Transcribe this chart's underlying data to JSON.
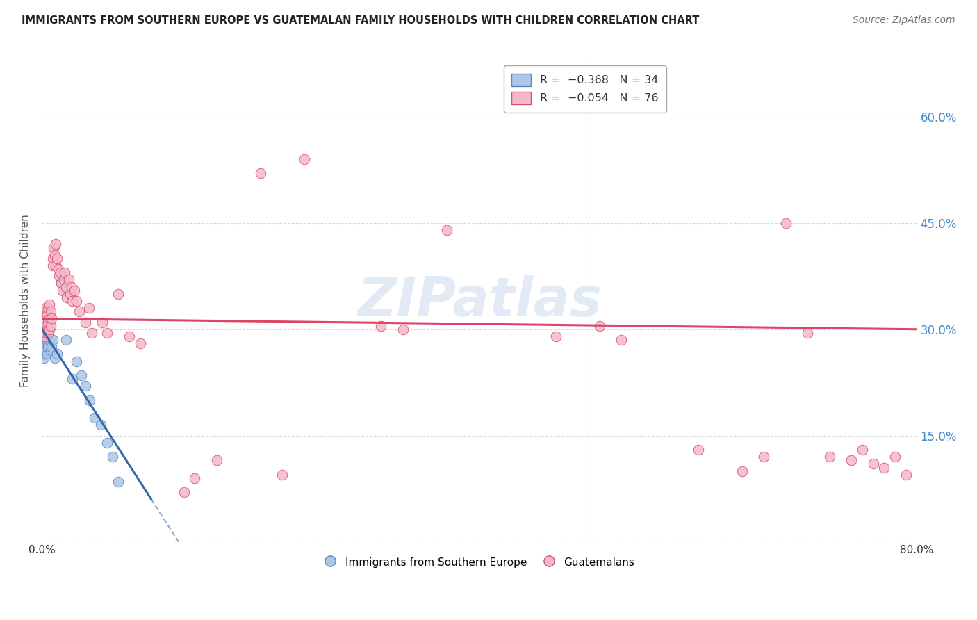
{
  "title": "IMMIGRANTS FROM SOUTHERN EUROPE VS GUATEMALAN FAMILY HOUSEHOLDS WITH CHILDREN CORRELATION CHART",
  "source": "Source: ZipAtlas.com",
  "ylabel": "Family Households with Children",
  "series1_label": "Immigrants from Southern Europe",
  "series2_label": "Guatemalans",
  "series1_color": "#aec6e8",
  "series2_color": "#f5b8c8",
  "series1_edge": "#5588bb",
  "series2_edge": "#d45070",
  "trend1_color": "#3366aa",
  "trend2_color": "#dd4466",
  "background_color": "#ffffff",
  "grid_color": "#cccccc",
  "watermark": "ZIPatlas",
  "title_color": "#222222",
  "right_tick_color": "#4488cc",
  "xlim": [
    0.0,
    0.8
  ],
  "ylim": [
    0.0,
    0.68
  ],
  "blue_x": [
    0.001,
    0.001,
    0.002,
    0.002,
    0.002,
    0.003,
    0.003,
    0.003,
    0.004,
    0.004,
    0.004,
    0.005,
    0.005,
    0.006,
    0.006,
    0.007,
    0.008,
    0.009,
    0.01,
    0.012,
    0.014,
    0.018,
    0.02,
    0.022,
    0.028,
    0.032,
    0.036,
    0.04,
    0.044,
    0.048,
    0.054,
    0.06,
    0.065,
    0.07
  ],
  "blue_y": [
    0.29,
    0.27,
    0.285,
    0.27,
    0.26,
    0.295,
    0.28,
    0.265,
    0.3,
    0.285,
    0.27,
    0.285,
    0.265,
    0.295,
    0.275,
    0.285,
    0.27,
    0.275,
    0.285,
    0.26,
    0.265,
    0.365,
    0.37,
    0.285,
    0.23,
    0.255,
    0.235,
    0.22,
    0.2,
    0.175,
    0.165,
    0.14,
    0.12,
    0.085
  ],
  "pink_x": [
    0.001,
    0.001,
    0.002,
    0.002,
    0.003,
    0.003,
    0.003,
    0.004,
    0.004,
    0.004,
    0.005,
    0.005,
    0.006,
    0.006,
    0.006,
    0.007,
    0.007,
    0.007,
    0.008,
    0.008,
    0.009,
    0.01,
    0.01,
    0.011,
    0.012,
    0.013,
    0.013,
    0.014,
    0.015,
    0.016,
    0.017,
    0.018,
    0.019,
    0.02,
    0.021,
    0.022,
    0.023,
    0.025,
    0.026,
    0.027,
    0.028,
    0.03,
    0.032,
    0.034,
    0.04,
    0.043,
    0.046,
    0.055,
    0.06,
    0.07,
    0.08,
    0.09,
    0.13,
    0.14,
    0.16,
    0.2,
    0.22,
    0.24,
    0.31,
    0.33,
    0.37,
    0.47,
    0.51,
    0.53,
    0.6,
    0.64,
    0.66,
    0.68,
    0.7,
    0.72,
    0.74,
    0.75,
    0.76,
    0.77,
    0.78,
    0.79
  ],
  "pink_y": [
    0.32,
    0.3,
    0.32,
    0.305,
    0.325,
    0.305,
    0.29,
    0.33,
    0.31,
    0.295,
    0.32,
    0.3,
    0.33,
    0.31,
    0.295,
    0.335,
    0.315,
    0.3,
    0.325,
    0.305,
    0.315,
    0.4,
    0.39,
    0.415,
    0.405,
    0.42,
    0.39,
    0.4,
    0.385,
    0.375,
    0.38,
    0.365,
    0.355,
    0.37,
    0.38,
    0.36,
    0.345,
    0.37,
    0.35,
    0.36,
    0.34,
    0.355,
    0.34,
    0.325,
    0.31,
    0.33,
    0.295,
    0.31,
    0.295,
    0.35,
    0.29,
    0.28,
    0.07,
    0.09,
    0.115,
    0.52,
    0.095,
    0.54,
    0.305,
    0.3,
    0.44,
    0.29,
    0.305,
    0.285,
    0.13,
    0.1,
    0.12,
    0.45,
    0.295,
    0.12,
    0.115,
    0.13,
    0.11,
    0.105,
    0.12,
    0.095
  ],
  "trend1_x0": 0.0,
  "trend1_x_solid_end": 0.1,
  "trend1_x_dash_end": 0.8,
  "trend2_x0": 0.0,
  "trend2_x_end": 0.8,
  "trend2_y0": 0.315,
  "trend2_y1": 0.3
}
